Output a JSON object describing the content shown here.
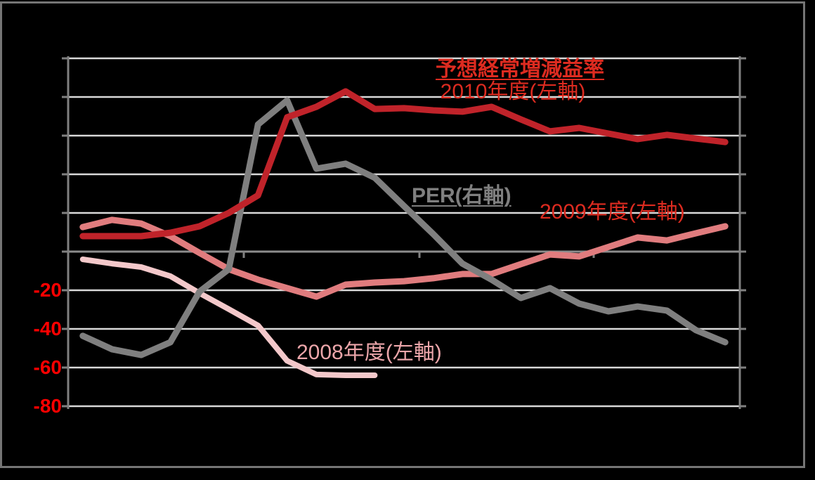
{
  "chart": {
    "title": "予想経常増減益率",
    "labels": {
      "series_2010": "2010年度(左軸)",
      "series_per": "PER(右軸)",
      "series_2009": "2009年度(左軸)",
      "series_2008": "2008年度(左軸)"
    },
    "y_axis_tick_labels": [
      "-20",
      "-40",
      "-60",
      "-80"
    ]
  },
  "colors": {
    "background": "#000000",
    "frame_border": "#757575",
    "gridline": "#d9d9d9",
    "zero_axis_line": "#8c8c8c",
    "axis_line": "#808080",
    "title_red": "#dd2b20",
    "axis_label_red": "#ff0000",
    "label_2008_pink": "#eca6aa",
    "series_2010": "#c0232a",
    "series_2009": "#e07c7e",
    "series_2008": "#f3c8ca",
    "series_per": "#7f7f7f"
  },
  "chart_data": {
    "type": "line",
    "title": "予想経常増減益率",
    "x_labels_visible": false,
    "left_axis": {
      "range": [
        -80,
        100
      ],
      "grid_step": 20,
      "visible_tick_labels": [
        "-20",
        "-40",
        "-60",
        "-80"
      ],
      "tick_label_color": "#ff0000",
      "note": "gridlines every 20 units; labels above 0 not visible"
    },
    "right_axis": {
      "labels_visible": false,
      "note": "PER series plotted on right axis; right axis tick labels not visible, values estimated on left-axis grid scale"
    },
    "legend_position": "none (inline text annotations)",
    "grid": true,
    "series": [
      {
        "name": "2008年度(左軸)",
        "color": "#f3c8ca",
        "axis": "left",
        "stroke_width": 8,
        "draw_order": 1,
        "values": [
          -4,
          -6.2,
          -8,
          -12.7,
          -21.5,
          -29.8,
          -38.2,
          -56.5,
          -63.6,
          -64,
          -64
        ]
      },
      {
        "name": "2009年度(左軸)",
        "color": "#e07c7e",
        "axis": "left",
        "stroke_width": 9,
        "draw_order": 2,
        "values": [
          12.7,
          16.4,
          14.5,
          8,
          -0.7,
          -9.1,
          -14.5,
          -18.9,
          -23.3,
          -17.1,
          -16,
          -15.3,
          -13.8,
          -11.6,
          -11.6,
          -6.5,
          -1.5,
          -2.5,
          2.4,
          7.3,
          5.8,
          9.5,
          13.1
        ]
      },
      {
        "name": "PER(右軸)",
        "color": "#7f7f7f",
        "axis": "right",
        "stroke_width": 9,
        "draw_order": 3,
        "values": [
          -43.6,
          -50.5,
          -53.5,
          -46.9,
          -20.7,
          -9.1,
          65.8,
          78.2,
          42.9,
          45.5,
          38.2,
          23.6,
          9.1,
          -6.2,
          -14.5,
          -24,
          -18.9,
          -26.9,
          -30.9,
          -28.4,
          -30.5,
          -40.7,
          -46.9
        ]
      },
      {
        "name": "2010年度(左軸)",
        "color": "#c0232a",
        "axis": "left",
        "stroke_width": 9,
        "draw_order": 4,
        "values": [
          8,
          8,
          8,
          9.8,
          13.1,
          20,
          29.1,
          69.5,
          74.9,
          82.9,
          73.8,
          74.2,
          73.1,
          72.4,
          74.9,
          68.4,
          62.2,
          64,
          61.1,
          58.2,
          60.4,
          58.5,
          56.7
        ]
      }
    ]
  }
}
